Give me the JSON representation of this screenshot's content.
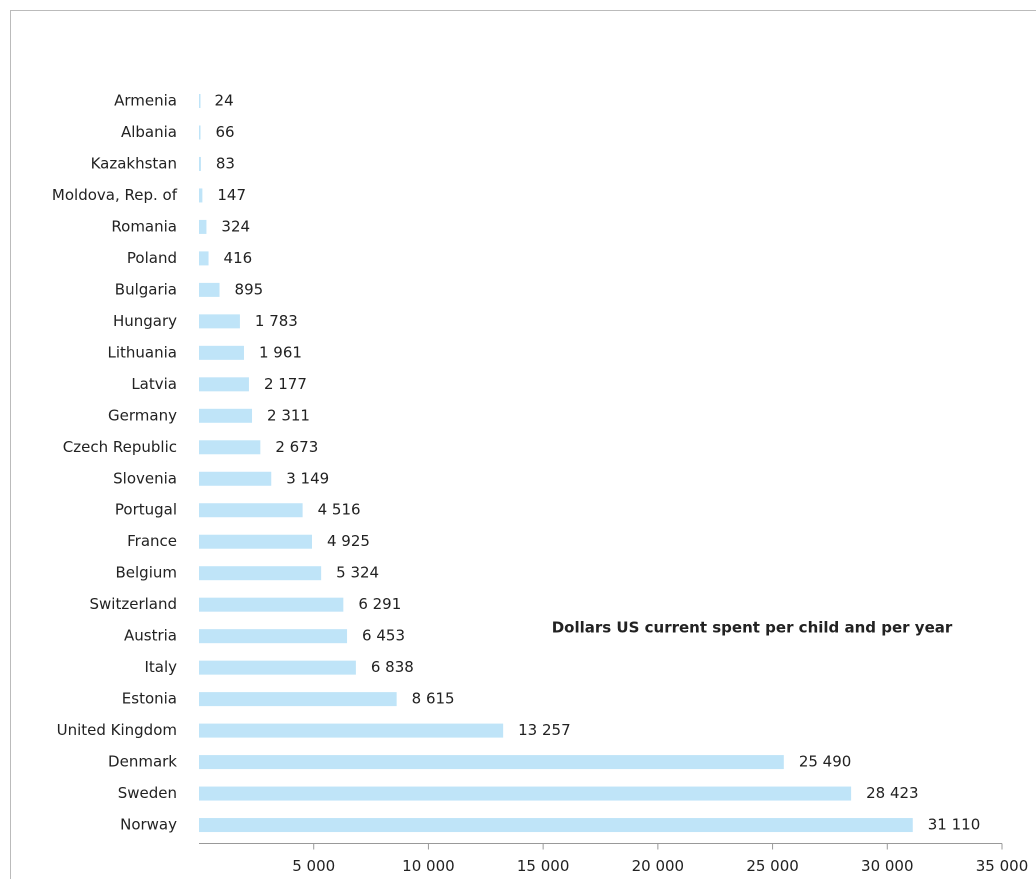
{
  "chart_data": {
    "type": "barh",
    "annotation": "Dollars US current spent per child and per year",
    "categories": [
      "Armenia",
      "Albania",
      "Kazakhstan",
      "Moldova, Rep. of",
      "Romania",
      "Poland",
      "Bulgaria",
      "Hungary",
      "Lithuania",
      "Latvia",
      "Germany",
      "Czech Republic",
      "Slovenia",
      "Portugal",
      "France",
      "Belgium",
      "Switzerland",
      "Austria",
      "Italy",
      "Estonia",
      "United Kingdom",
      "Denmark",
      "Sweden",
      "Norway"
    ],
    "values": [
      24,
      66,
      83,
      147,
      324,
      416,
      895,
      1783,
      1961,
      2177,
      2311,
      2673,
      3149,
      4516,
      4925,
      5324,
      6291,
      6453,
      6838,
      8615,
      13257,
      25490,
      28423,
      31110
    ],
    "value_labels": [
      "24",
      "66",
      "83",
      "147",
      "324",
      "416",
      "895",
      "1 783",
      "1 961",
      "2 177",
      "2 311",
      "2 673",
      "3 149",
      "4 516",
      "4 925",
      "5 324",
      "6 291",
      "6 453",
      "6 838",
      "8 615",
      "13 257",
      "25 490",
      "28 423",
      "31 110"
    ],
    "color": "#bfe4f8",
    "xlim": [
      0,
      35000
    ],
    "xticks": [
      {
        "value": 5000,
        "label": "5 000"
      },
      {
        "value": 10000,
        "label": "10 000"
      },
      {
        "value": 15000,
        "label": "15 000"
      },
      {
        "value": 20000,
        "label": "20 000"
      },
      {
        "value": 25000,
        "label": "25 000"
      },
      {
        "value": 30000,
        "label": "30 000"
      },
      {
        "value": 35000,
        "label": "35 000"
      }
    ]
  }
}
